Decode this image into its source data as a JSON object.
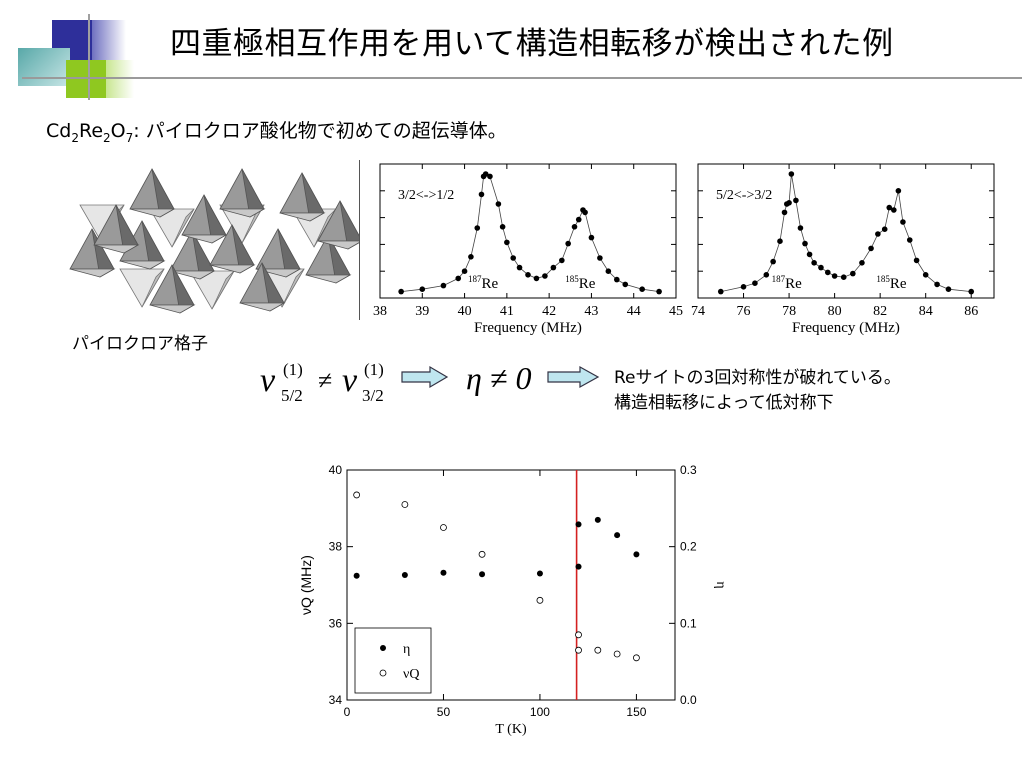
{
  "slide": {
    "title": "四重極相互作用を用いて構造相転移が検出された例",
    "subtitle": {
      "prefix": "Cd",
      "sub1": "2",
      "mid1": "Re",
      "sub2": "2",
      "mid2": "O",
      "sub3": "7",
      "rest": ": パイロクロア酸化物で初めての超伝導体。"
    },
    "lattice_caption": "パイロクロア格子",
    "equation": {
      "nu": "ν",
      "sup": "(1)",
      "sub_left": "5/2",
      "sub_right": "3/2",
      "neq": "≠",
      "eta_condition": "η ≠ 0"
    },
    "result_lines": [
      "Reサイトの3回対称性が破れている。",
      "構造相転移によって低対称下"
    ],
    "colors": {
      "transition_line": "#d42020",
      "arrow_fill": "#bfe6ef"
    }
  },
  "chart_data": [
    {
      "type": "scatter",
      "title": "",
      "annotation": "3/2<->1/2",
      "peak_labels": [
        {
          "text": "Re",
          "mass": "187",
          "x": 40.6
        },
        {
          "text": "Re",
          "mass": "185",
          "x": 42.9
        }
      ],
      "xlabel": "Frequency (MHz)",
      "ylabel": "",
      "xlim": [
        38,
        45
      ],
      "xticks": [
        38,
        39,
        40,
        41,
        42,
        43,
        44,
        45
      ],
      "x": [
        38.5,
        39.0,
        39.5,
        39.85,
        40.0,
        40.15,
        40.3,
        40.4,
        40.45,
        40.5,
        40.6,
        40.8,
        40.9,
        41.0,
        41.15,
        41.3,
        41.5,
        41.7,
        41.9,
        42.1,
        42.3,
        42.45,
        42.6,
        42.7,
        42.8,
        42.85,
        43.0,
        43.2,
        43.4,
        43.6,
        43.8,
        44.2,
        44.6
      ],
      "y": [
        0.02,
        0.04,
        0.07,
        0.13,
        0.19,
        0.31,
        0.55,
        0.83,
        0.98,
        1.0,
        0.98,
        0.75,
        0.56,
        0.43,
        0.3,
        0.22,
        0.16,
        0.13,
        0.15,
        0.22,
        0.28,
        0.42,
        0.56,
        0.62,
        0.7,
        0.68,
        0.47,
        0.3,
        0.19,
        0.12,
        0.08,
        0.04,
        0.02
      ],
      "yscale": "arbitrary (normalized)"
    },
    {
      "type": "scatter",
      "title": "",
      "annotation": "5/2<->3/2",
      "peak_labels": [
        {
          "text": "Re",
          "mass": "187",
          "x": 78.2
        },
        {
          "text": "Re",
          "mass": "185",
          "x": 82.8
        }
      ],
      "xlabel": "Frequency (MHz)",
      "ylabel": "",
      "xlim": [
        74,
        87
      ],
      "xticks": [
        74,
        76,
        78,
        80,
        82,
        84,
        86
      ],
      "x": [
        75.0,
        76.0,
        76.5,
        77.0,
        77.3,
        77.6,
        77.8,
        77.9,
        78.0,
        78.1,
        78.3,
        78.5,
        78.7,
        78.9,
        79.1,
        79.4,
        79.7,
        80.0,
        80.4,
        80.8,
        81.2,
        81.6,
        81.9,
        82.2,
        82.4,
        82.6,
        82.8,
        83.0,
        83.3,
        83.6,
        84.0,
        84.5,
        85.0,
        86.0
      ],
      "y": [
        0.02,
        0.06,
        0.09,
        0.16,
        0.27,
        0.44,
        0.68,
        0.75,
        0.76,
        1.0,
        0.78,
        0.55,
        0.42,
        0.33,
        0.26,
        0.22,
        0.18,
        0.15,
        0.14,
        0.17,
        0.26,
        0.38,
        0.5,
        0.54,
        0.72,
        0.7,
        0.86,
        0.6,
        0.45,
        0.28,
        0.16,
        0.08,
        0.04,
        0.02
      ],
      "yscale": "arbitrary (normalized)"
    },
    {
      "type": "scatter",
      "title": "",
      "xlabel": "T (K)",
      "ylabel_left": "νQ (MHz)",
      "ylabel_right": "η",
      "xlim": [
        0,
        170
      ],
      "xticks": [
        0,
        50,
        100,
        150
      ],
      "ylim_left": [
        34,
        40
      ],
      "yticks_left": [
        34,
        36,
        38,
        40
      ],
      "ylim_right": [
        0.0,
        0.3
      ],
      "yticks_right": [
        0.0,
        0.1,
        0.2,
        0.3
      ],
      "transition_T": 119,
      "legend": {
        "placement": "bottom-left",
        "entries": [
          "η",
          "νQ"
        ]
      },
      "series": [
        {
          "name": "η",
          "marker": "filled",
          "axis": "right",
          "x": [
            5,
            30,
            50,
            70,
            100,
            120,
            120,
            130,
            140,
            150
          ],
          "y": [
            0.162,
            0.163,
            0.166,
            0.164,
            0.165,
            0.174,
            0.229,
            0.235,
            0.215,
            0.19
          ]
        },
        {
          "name": "νQ",
          "marker": "open",
          "axis": "left",
          "x": [
            5,
            30,
            50,
            70,
            100,
            120,
            120,
            130,
            140,
            150
          ],
          "y": [
            39.35,
            39.1,
            38.5,
            37.8,
            36.6,
            35.7,
            35.3,
            35.3,
            35.2,
            35.1
          ]
        }
      ]
    }
  ]
}
